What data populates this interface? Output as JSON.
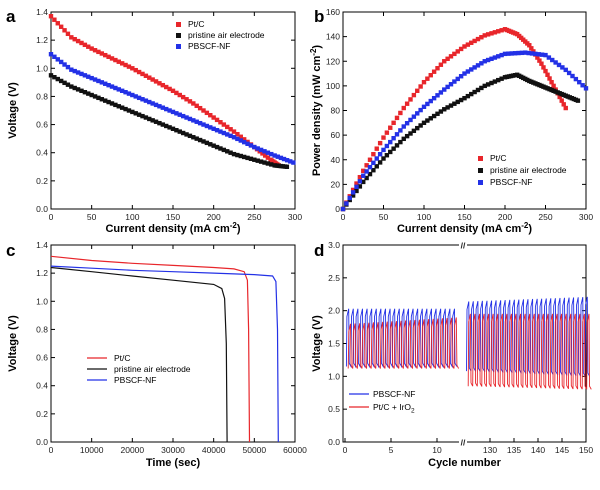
{
  "colors": {
    "red": "#e8262b",
    "black": "#111111",
    "blue": "#2331e6"
  },
  "chart_data": [
    {
      "panel": "a",
      "type": "scatter",
      "xlabel": "Current density (mA cm",
      "xlabel_sup": "-2",
      "ylabel": "Voltage (V)",
      "xlim": [
        0,
        300
      ],
      "ylim": [
        0,
        1.4
      ],
      "xticks": [
        0,
        50,
        100,
        150,
        200,
        250,
        300
      ],
      "yticks": [
        0.0,
        0.2,
        0.4,
        0.6,
        0.8,
        1.0,
        1.2,
        1.4
      ],
      "legend": "top-center",
      "series": [
        {
          "name": "Pt/C",
          "color": "red",
          "x": [
            0,
            25,
            50,
            75,
            100,
            125,
            150,
            175,
            200,
            225,
            250,
            270,
            280
          ],
          "y": [
            1.37,
            1.22,
            1.14,
            1.07,
            1.0,
            0.92,
            0.84,
            0.75,
            0.65,
            0.55,
            0.44,
            0.35,
            0.31
          ]
        },
        {
          "name": "pristine air electrode",
          "color": "black",
          "x": [
            0,
            25,
            50,
            75,
            100,
            125,
            150,
            175,
            200,
            225,
            250,
            275,
            290
          ],
          "y": [
            0.95,
            0.87,
            0.81,
            0.75,
            0.69,
            0.63,
            0.57,
            0.51,
            0.45,
            0.39,
            0.35,
            0.31,
            0.3
          ]
        },
        {
          "name": "PBSCF-NF",
          "color": "blue",
          "x": [
            0,
            25,
            50,
            75,
            100,
            125,
            150,
            175,
            200,
            225,
            250,
            275,
            298
          ],
          "y": [
            1.1,
            0.99,
            0.93,
            0.87,
            0.81,
            0.75,
            0.69,
            0.63,
            0.57,
            0.51,
            0.44,
            0.38,
            0.33
          ]
        }
      ]
    },
    {
      "panel": "b",
      "type": "scatter",
      "xlabel": "Current density (mA cm",
      "xlabel_sup": "-2",
      "ylabel": "Power density (mW cm",
      "ylabel_sup": "-2",
      "xlim": [
        0,
        300
      ],
      "ylim": [
        0,
        160
      ],
      "xticks": [
        0,
        50,
        100,
        150,
        200,
        250,
        300
      ],
      "yticks": [
        0,
        20,
        40,
        60,
        80,
        100,
        120,
        140,
        160
      ],
      "legend": "bottom-right",
      "series": [
        {
          "name": "Pt/C",
          "color": "red",
          "x": [
            0,
            25,
            50,
            75,
            100,
            125,
            150,
            175,
            200,
            215,
            230,
            245,
            260,
            275
          ],
          "y": [
            0,
            31,
            58,
            82,
            103,
            120,
            132,
            141,
            146,
            142,
            133,
            118,
            100,
            82
          ]
        },
        {
          "name": "pristine air electrode",
          "color": "black",
          "x": [
            0,
            25,
            50,
            75,
            100,
            125,
            150,
            175,
            200,
            215,
            230,
            245,
            260,
            275,
            290
          ],
          "y": [
            0,
            22,
            41,
            57,
            70,
            81,
            90,
            100,
            107,
            109,
            104,
            100,
            96,
            92,
            88
          ]
        },
        {
          "name": "PBSCF-NF",
          "color": "blue",
          "x": [
            0,
            25,
            50,
            75,
            100,
            125,
            150,
            175,
            200,
            225,
            250,
            275,
            300
          ],
          "y": [
            0,
            27,
            48,
            67,
            83,
            97,
            110,
            120,
            126,
            127,
            125,
            113,
            98
          ]
        }
      ]
    },
    {
      "panel": "c",
      "type": "line",
      "xlabel": "Time (sec)",
      "ylabel": "Voltage (V)",
      "xlim": [
        0,
        60000
      ],
      "ylim": [
        0,
        1.4
      ],
      "xticks": [
        0,
        10000,
        20000,
        30000,
        40000,
        50000,
        60000
      ],
      "yticks": [
        0.0,
        0.2,
        0.4,
        0.6,
        0.8,
        1.0,
        1.2,
        1.4
      ],
      "legend": "bottom-left",
      "series": [
        {
          "name": "Pt/C",
          "color": "red",
          "x": [
            0,
            10000,
            20000,
            30000,
            40000,
            45000,
            47500,
            48300,
            48600,
            48800
          ],
          "y": [
            1.32,
            1.29,
            1.27,
            1.255,
            1.24,
            1.23,
            1.21,
            1.15,
            0.8,
            0.0
          ]
        },
        {
          "name": "pristine air electrode",
          "color": "black",
          "x": [
            0,
            10000,
            20000,
            30000,
            40000,
            42000,
            42700,
            43100,
            43300
          ],
          "y": [
            1.24,
            1.21,
            1.18,
            1.15,
            1.12,
            1.09,
            1.02,
            0.7,
            0.0
          ]
        },
        {
          "name": "PBSCF-NF",
          "color": "blue",
          "x": [
            0,
            10000,
            20000,
            30000,
            40000,
            50000,
            54500,
            55300,
            55700,
            55900
          ],
          "y": [
            1.25,
            1.235,
            1.22,
            1.21,
            1.2,
            1.19,
            1.18,
            1.14,
            0.8,
            0.0
          ]
        }
      ]
    },
    {
      "panel": "d",
      "type": "line",
      "xlabel": "Cycle number",
      "ylabel": "Voltage (V)",
      "ylim": [
        0.0,
        3.0
      ],
      "yticks": [
        0.0,
        0.5,
        1.0,
        1.5,
        2.0,
        2.5,
        3.0
      ],
      "xticks_left": [
        0,
        5,
        10
      ],
      "xticks_right": [
        130,
        135,
        140,
        145,
        150
      ],
      "break_marker": "//",
      "legend": "bottom-left",
      "series": [
        {
          "name": "PBSCF-NF",
          "color": "blue",
          "left": {
            "cycles": [
              0,
              12
            ],
            "charge": 2.03,
            "discharge": 1.15
          },
          "right": {
            "cycles": [
              125,
              150
            ],
            "charge_start": 2.14,
            "charge_end": 2.21,
            "discharge_start": 1.08,
            "discharge_end": 1.0
          }
        },
        {
          "name": "Pt/C + IrO",
          "name_sub": "2",
          "color": "red",
          "left": {
            "cycles": [
              0,
              12
            ],
            "charge_start": 1.8,
            "charge_end": 1.9,
            "discharge": 1.12
          },
          "right": {
            "cycles": [
              125,
              150
            ],
            "charge": 1.95,
            "discharge_start": 0.85,
            "discharge_end": 0.8
          }
        }
      ]
    }
  ]
}
